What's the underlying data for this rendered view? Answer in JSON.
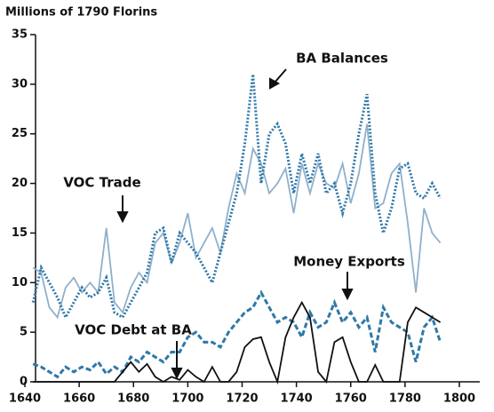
{
  "chart_data": {
    "type": "line",
    "y_label": "Millions of 1790 Florins",
    "x": [
      1643,
      1646,
      1649,
      1652,
      1655,
      1658,
      1661,
      1664,
      1667,
      1670,
      1673,
      1676,
      1679,
      1682,
      1685,
      1688,
      1691,
      1694,
      1697,
      1700,
      1703,
      1706,
      1709,
      1712,
      1715,
      1718,
      1721,
      1724,
      1727,
      1730,
      1733,
      1736,
      1739,
      1742,
      1745,
      1748,
      1751,
      1754,
      1757,
      1760,
      1763,
      1766,
      1769,
      1772,
      1775,
      1778,
      1781,
      1784,
      1787,
      1790,
      1793
    ],
    "series": [
      {
        "name": "VOC Trade",
        "color": "#8fb0cc",
        "style": "solid",
        "values": [
          11.5,
          11,
          7.5,
          6.5,
          9.5,
          10.5,
          9,
          10,
          9,
          15.5,
          8,
          7,
          9.5,
          11,
          10,
          14,
          15,
          12,
          14,
          17,
          12.5,
          14,
          15.5,
          13,
          17.5,
          21,
          19,
          23.5,
          22,
          19,
          20,
          21.5,
          17,
          22,
          19,
          22,
          20,
          19.5,
          22,
          18,
          21,
          26,
          17.5,
          18,
          21,
          22,
          16,
          9,
          17.5,
          15,
          14
        ]
      },
      {
        "name": "BA Balances",
        "color": "#2f78a8",
        "style": "dotted",
        "values": [
          8,
          11.5,
          10,
          8.5,
          6.5,
          8,
          9.5,
          8.5,
          9,
          10.5,
          7,
          6.5,
          8,
          9.5,
          11,
          15,
          15.5,
          12,
          15,
          14,
          13,
          11.5,
          10,
          13,
          16,
          19,
          24,
          31,
          20,
          25,
          26,
          24,
          19,
          23,
          20,
          23,
          19,
          20,
          17,
          20,
          25,
          29,
          19,
          15,
          17.5,
          21.5,
          22,
          19,
          18.5,
          20,
          18.5
        ]
      },
      {
        "name": "Money Exports",
        "color": "#2f78a8",
        "style": "dashed",
        "values": [
          1.8,
          1.5,
          1,
          0.5,
          1.5,
          1,
          1.5,
          1.2,
          2,
          0.8,
          1.5,
          1,
          2.5,
          2,
          3,
          2.5,
          2,
          3,
          3,
          4.5,
          5,
          4,
          4,
          3.5,
          5,
          6,
          7,
          7.5,
          9,
          7.5,
          6,
          6.5,
          6,
          4.5,
          7,
          5.5,
          6,
          8,
          6,
          7,
          5.5,
          6.5,
          3,
          7.5,
          6,
          5.5,
          5,
          2,
          5.5,
          6.5,
          4
        ]
      },
      {
        "name": "VOC Debt at BA",
        "color": "#111111",
        "style": "solid",
        "values": [
          0,
          0,
          0,
          0,
          0,
          0,
          0,
          0,
          0,
          0,
          0,
          1,
          2,
          1,
          1.8,
          0.5,
          0,
          0.5,
          0.2,
          1.2,
          0.5,
          0,
          1.5,
          0,
          0,
          1,
          3.5,
          4.3,
          4.5,
          2,
          0,
          4.5,
          6.5,
          8,
          6.5,
          1,
          0,
          4,
          4.5,
          2,
          0,
          0,
          1.7,
          0,
          0,
          0,
          6,
          7.5,
          7,
          6.5,
          6
        ]
      }
    ],
    "xlim": [
      1640,
      1800
    ],
    "xticks": [
      1640,
      1660,
      1680,
      1700,
      1720,
      1740,
      1760,
      1780,
      1800
    ],
    "ylim": [
      0,
      35
    ],
    "yticks": [
      0,
      5,
      10,
      15,
      20,
      25,
      30,
      35
    ]
  }
}
